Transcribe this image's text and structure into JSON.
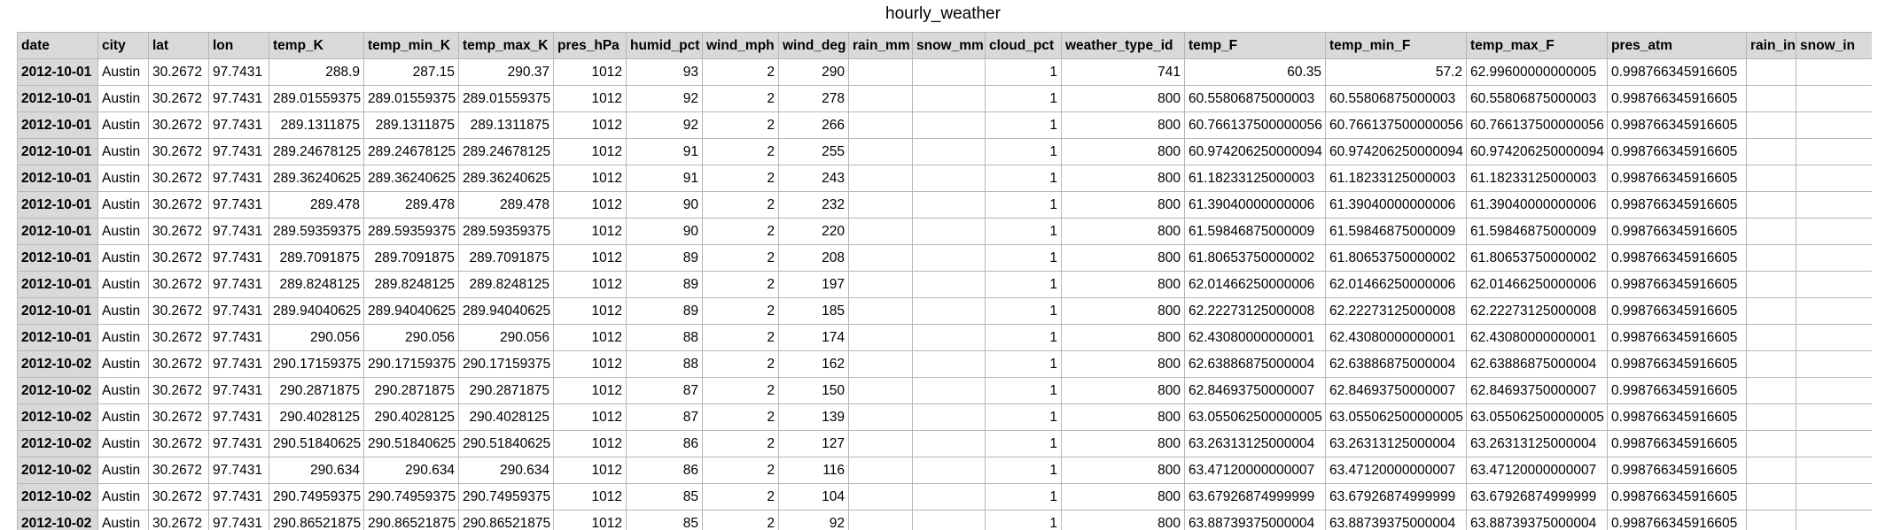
{
  "sheet": {
    "title": "hourly_weather"
  },
  "table": {
    "columns": [
      {
        "label": "date",
        "key": "date",
        "align": "head"
      },
      {
        "label": "city",
        "key": "city",
        "align": "txt"
      },
      {
        "label": "lat",
        "key": "lat",
        "align": "txt"
      },
      {
        "label": "lon",
        "key": "lon",
        "align": "txt"
      },
      {
        "label": "temp_K",
        "key": "temp_K",
        "align": "num"
      },
      {
        "label": "temp_min_K",
        "key": "temp_min_K",
        "align": "num"
      },
      {
        "label": "temp_max_K",
        "key": "temp_max_K",
        "align": "num"
      },
      {
        "label": "pres_hPa",
        "key": "pres_hPa",
        "align": "num"
      },
      {
        "label": "humid_pct",
        "key": "humid_pct",
        "align": "num"
      },
      {
        "label": "wind_mph",
        "key": "wind_mph",
        "align": "num"
      },
      {
        "label": "wind_deg",
        "key": "wind_deg",
        "align": "num"
      },
      {
        "label": "rain_mm",
        "key": "rain_mm",
        "align": "num"
      },
      {
        "label": "snow_mm",
        "key": "snow_mm",
        "align": "num"
      },
      {
        "label": "cloud_pct",
        "key": "cloud_pct",
        "align": "num"
      },
      {
        "label": "weather_type_id",
        "key": "weather_type_id",
        "align": "num"
      },
      {
        "label": "temp_F",
        "key": "temp_F",
        "align": "txt"
      },
      {
        "label": "temp_min_F",
        "key": "temp_min_F",
        "align": "txt"
      },
      {
        "label": "temp_max_F",
        "key": "temp_max_F",
        "align": "txt"
      },
      {
        "label": "pres_atm",
        "key": "pres_atm",
        "align": "txt"
      },
      {
        "label": "rain_in",
        "key": "rain_in",
        "align": "txt"
      },
      {
        "label": "snow_in",
        "key": "snow_in",
        "align": "txt"
      }
    ],
    "rows": [
      {
        "date": "2012-10-01",
        "city": "Austin",
        "lat": "30.2672",
        "lon": "97.7431",
        "temp_K": "288.9",
        "temp_min_K": "287.15",
        "temp_max_K": "290.37",
        "pres_hPa": "1012",
        "humid_pct": "93",
        "wind_mph": "2",
        "wind_deg": "290",
        "rain_mm": "",
        "snow_mm": "",
        "cloud_pct": "1",
        "weather_type_id": "741",
        "temp_F": "60.35",
        "temp_min_F": "57.2",
        "temp_max_F": "62.99600000000005",
        "pres_atm": "0.998766345916605",
        "rain_in": "",
        "snow_in": "",
        "temp_F_align": "num",
        "temp_min_F_align": "num"
      },
      {
        "date": "2012-10-01",
        "city": "Austin",
        "lat": "30.2672",
        "lon": "97.7431",
        "temp_K": "289.01559375",
        "temp_min_K": "289.01559375",
        "temp_max_K": "289.01559375",
        "pres_hPa": "1012",
        "humid_pct": "92",
        "wind_mph": "2",
        "wind_deg": "278",
        "rain_mm": "",
        "snow_mm": "",
        "cloud_pct": "1",
        "weather_type_id": "800",
        "temp_F": "60.55806875000003",
        "temp_min_F": "60.55806875000003",
        "temp_max_F": "60.55806875000003",
        "pres_atm": "0.998766345916605",
        "rain_in": "",
        "snow_in": ""
      },
      {
        "date": "2012-10-01",
        "city": "Austin",
        "lat": "30.2672",
        "lon": "97.7431",
        "temp_K": "289.1311875",
        "temp_min_K": "289.1311875",
        "temp_max_K": "289.1311875",
        "pres_hPa": "1012",
        "humid_pct": "92",
        "wind_mph": "2",
        "wind_deg": "266",
        "rain_mm": "",
        "snow_mm": "",
        "cloud_pct": "1",
        "weather_type_id": "800",
        "temp_F": "60.766137500000056",
        "temp_min_F": "60.766137500000056",
        "temp_max_F": "60.766137500000056",
        "pres_atm": "0.998766345916605",
        "rain_in": "",
        "snow_in": ""
      },
      {
        "date": "2012-10-01",
        "city": "Austin",
        "lat": "30.2672",
        "lon": "97.7431",
        "temp_K": "289.24678125",
        "temp_min_K": "289.24678125",
        "temp_max_K": "289.24678125",
        "pres_hPa": "1012",
        "humid_pct": "91",
        "wind_mph": "2",
        "wind_deg": "255",
        "rain_mm": "",
        "snow_mm": "",
        "cloud_pct": "1",
        "weather_type_id": "800",
        "temp_F": "60.974206250000094",
        "temp_min_F": "60.974206250000094",
        "temp_max_F": "60.974206250000094",
        "pres_atm": "0.998766345916605",
        "rain_in": "",
        "snow_in": ""
      },
      {
        "date": "2012-10-01",
        "city": "Austin",
        "lat": "30.2672",
        "lon": "97.7431",
        "temp_K": "289.36240625",
        "temp_min_K": "289.36240625",
        "temp_max_K": "289.36240625",
        "pres_hPa": "1012",
        "humid_pct": "91",
        "wind_mph": "2",
        "wind_deg": "243",
        "rain_mm": "",
        "snow_mm": "",
        "cloud_pct": "1",
        "weather_type_id": "800",
        "temp_F": "61.18233125000003",
        "temp_min_F": "61.18233125000003",
        "temp_max_F": "61.18233125000003",
        "pres_atm": "0.998766345916605",
        "rain_in": "",
        "snow_in": ""
      },
      {
        "date": "2012-10-01",
        "city": "Austin",
        "lat": "30.2672",
        "lon": "97.7431",
        "temp_K": "289.478",
        "temp_min_K": "289.478",
        "temp_max_K": "289.478",
        "pres_hPa": "1012",
        "humid_pct": "90",
        "wind_mph": "2",
        "wind_deg": "232",
        "rain_mm": "",
        "snow_mm": "",
        "cloud_pct": "1",
        "weather_type_id": "800",
        "temp_F": "61.39040000000006",
        "temp_min_F": "61.39040000000006",
        "temp_max_F": "61.39040000000006",
        "pres_atm": "0.998766345916605",
        "rain_in": "",
        "snow_in": ""
      },
      {
        "date": "2012-10-01",
        "city": "Austin",
        "lat": "30.2672",
        "lon": "97.7431",
        "temp_K": "289.59359375",
        "temp_min_K": "289.59359375",
        "temp_max_K": "289.59359375",
        "pres_hPa": "1012",
        "humid_pct": "90",
        "wind_mph": "2",
        "wind_deg": "220",
        "rain_mm": "",
        "snow_mm": "",
        "cloud_pct": "1",
        "weather_type_id": "800",
        "temp_F": "61.59846875000009",
        "temp_min_F": "61.59846875000009",
        "temp_max_F": "61.59846875000009",
        "pres_atm": "0.998766345916605",
        "rain_in": "",
        "snow_in": ""
      },
      {
        "date": "2012-10-01",
        "city": "Austin",
        "lat": "30.2672",
        "lon": "97.7431",
        "temp_K": "289.7091875",
        "temp_min_K": "289.7091875",
        "temp_max_K": "289.7091875",
        "pres_hPa": "1012",
        "humid_pct": "89",
        "wind_mph": "2",
        "wind_deg": "208",
        "rain_mm": "",
        "snow_mm": "",
        "cloud_pct": "1",
        "weather_type_id": "800",
        "temp_F": "61.80653750000002",
        "temp_min_F": "61.80653750000002",
        "temp_max_F": "61.80653750000002",
        "pres_atm": "0.998766345916605",
        "rain_in": "",
        "snow_in": ""
      },
      {
        "date": "2012-10-01",
        "city": "Austin",
        "lat": "30.2672",
        "lon": "97.7431",
        "temp_K": "289.8248125",
        "temp_min_K": "289.8248125",
        "temp_max_K": "289.8248125",
        "pres_hPa": "1012",
        "humid_pct": "89",
        "wind_mph": "2",
        "wind_deg": "197",
        "rain_mm": "",
        "snow_mm": "",
        "cloud_pct": "1",
        "weather_type_id": "800",
        "temp_F": "62.01466250000006",
        "temp_min_F": "62.01466250000006",
        "temp_max_F": "62.01466250000006",
        "pres_atm": "0.998766345916605",
        "rain_in": "",
        "snow_in": ""
      },
      {
        "date": "2012-10-01",
        "city": "Austin",
        "lat": "30.2672",
        "lon": "97.7431",
        "temp_K": "289.94040625",
        "temp_min_K": "289.94040625",
        "temp_max_K": "289.94040625",
        "pres_hPa": "1012",
        "humid_pct": "89",
        "wind_mph": "2",
        "wind_deg": "185",
        "rain_mm": "",
        "snow_mm": "",
        "cloud_pct": "1",
        "weather_type_id": "800",
        "temp_F": "62.22273125000008",
        "temp_min_F": "62.22273125000008",
        "temp_max_F": "62.22273125000008",
        "pres_atm": "0.998766345916605",
        "rain_in": "",
        "snow_in": ""
      },
      {
        "date": "2012-10-01",
        "city": "Austin",
        "lat": "30.2672",
        "lon": "97.7431",
        "temp_K": "290.056",
        "temp_min_K": "290.056",
        "temp_max_K": "290.056",
        "pres_hPa": "1012",
        "humid_pct": "88",
        "wind_mph": "2",
        "wind_deg": "174",
        "rain_mm": "",
        "snow_mm": "",
        "cloud_pct": "1",
        "weather_type_id": "800",
        "temp_F": "62.43080000000001",
        "temp_min_F": "62.43080000000001",
        "temp_max_F": "62.43080000000001",
        "pres_atm": "0.998766345916605",
        "rain_in": "",
        "snow_in": ""
      },
      {
        "date": "2012-10-02",
        "city": "Austin",
        "lat": "30.2672",
        "lon": "97.7431",
        "temp_K": "290.17159375",
        "temp_min_K": "290.17159375",
        "temp_max_K": "290.17159375",
        "pres_hPa": "1012",
        "humid_pct": "88",
        "wind_mph": "2",
        "wind_deg": "162",
        "rain_mm": "",
        "snow_mm": "",
        "cloud_pct": "1",
        "weather_type_id": "800",
        "temp_F": "62.63886875000004",
        "temp_min_F": "62.63886875000004",
        "temp_max_F": "62.63886875000004",
        "pres_atm": "0.998766345916605",
        "rain_in": "",
        "snow_in": ""
      },
      {
        "date": "2012-10-02",
        "city": "Austin",
        "lat": "30.2672",
        "lon": "97.7431",
        "temp_K": "290.2871875",
        "temp_min_K": "290.2871875",
        "temp_max_K": "290.2871875",
        "pres_hPa": "1012",
        "humid_pct": "87",
        "wind_mph": "2",
        "wind_deg": "150",
        "rain_mm": "",
        "snow_mm": "",
        "cloud_pct": "1",
        "weather_type_id": "800",
        "temp_F": "62.84693750000007",
        "temp_min_F": "62.84693750000007",
        "temp_max_F": "62.84693750000007",
        "pres_atm": "0.998766345916605",
        "rain_in": "",
        "snow_in": ""
      },
      {
        "date": "2012-10-02",
        "city": "Austin",
        "lat": "30.2672",
        "lon": "97.7431",
        "temp_K": "290.4028125",
        "temp_min_K": "290.4028125",
        "temp_max_K": "290.4028125",
        "pres_hPa": "1012",
        "humid_pct": "87",
        "wind_mph": "2",
        "wind_deg": "139",
        "rain_mm": "",
        "snow_mm": "",
        "cloud_pct": "1",
        "weather_type_id": "800",
        "temp_F": "63.055062500000005",
        "temp_min_F": "63.055062500000005",
        "temp_max_F": "63.055062500000005",
        "pres_atm": "0.998766345916605",
        "rain_in": "",
        "snow_in": ""
      },
      {
        "date": "2012-10-02",
        "city": "Austin",
        "lat": "30.2672",
        "lon": "97.7431",
        "temp_K": "290.51840625",
        "temp_min_K": "290.51840625",
        "temp_max_K": "290.51840625",
        "pres_hPa": "1012",
        "humid_pct": "86",
        "wind_mph": "2",
        "wind_deg": "127",
        "rain_mm": "",
        "snow_mm": "",
        "cloud_pct": "1",
        "weather_type_id": "800",
        "temp_F": "63.26313125000004",
        "temp_min_F": "63.26313125000004",
        "temp_max_F": "63.26313125000004",
        "pres_atm": "0.998766345916605",
        "rain_in": "",
        "snow_in": ""
      },
      {
        "date": "2012-10-02",
        "city": "Austin",
        "lat": "30.2672",
        "lon": "97.7431",
        "temp_K": "290.634",
        "temp_min_K": "290.634",
        "temp_max_K": "290.634",
        "pres_hPa": "1012",
        "humid_pct": "86",
        "wind_mph": "2",
        "wind_deg": "116",
        "rain_mm": "",
        "snow_mm": "",
        "cloud_pct": "1",
        "weather_type_id": "800",
        "temp_F": "63.47120000000007",
        "temp_min_F": "63.47120000000007",
        "temp_max_F": "63.47120000000007",
        "pres_atm": "0.998766345916605",
        "rain_in": "",
        "snow_in": ""
      },
      {
        "date": "2012-10-02",
        "city": "Austin",
        "lat": "30.2672",
        "lon": "97.7431",
        "temp_K": "290.74959375",
        "temp_min_K": "290.74959375",
        "temp_max_K": "290.74959375",
        "pres_hPa": "1012",
        "humid_pct": "85",
        "wind_mph": "2",
        "wind_deg": "104",
        "rain_mm": "",
        "snow_mm": "",
        "cloud_pct": "1",
        "weather_type_id": "800",
        "temp_F": "63.67926874999999",
        "temp_min_F": "63.67926874999999",
        "temp_max_F": "63.67926874999999",
        "pres_atm": "0.998766345916605",
        "rain_in": "",
        "snow_in": ""
      },
      {
        "date": "2012-10-02",
        "city": "Austin",
        "lat": "30.2672",
        "lon": "97.7431",
        "temp_K": "290.86521875",
        "temp_min_K": "290.86521875",
        "temp_max_K": "290.86521875",
        "pres_hPa": "1012",
        "humid_pct": "85",
        "wind_mph": "2",
        "wind_deg": "92",
        "rain_mm": "",
        "snow_mm": "",
        "cloud_pct": "1",
        "weather_type_id": "800",
        "temp_F": "63.88739375000004",
        "temp_min_F": "63.88739375000004",
        "temp_max_F": "63.88739375000004",
        "pres_atm": "0.998766345916605",
        "rain_in": "",
        "snow_in": ""
      }
    ]
  }
}
